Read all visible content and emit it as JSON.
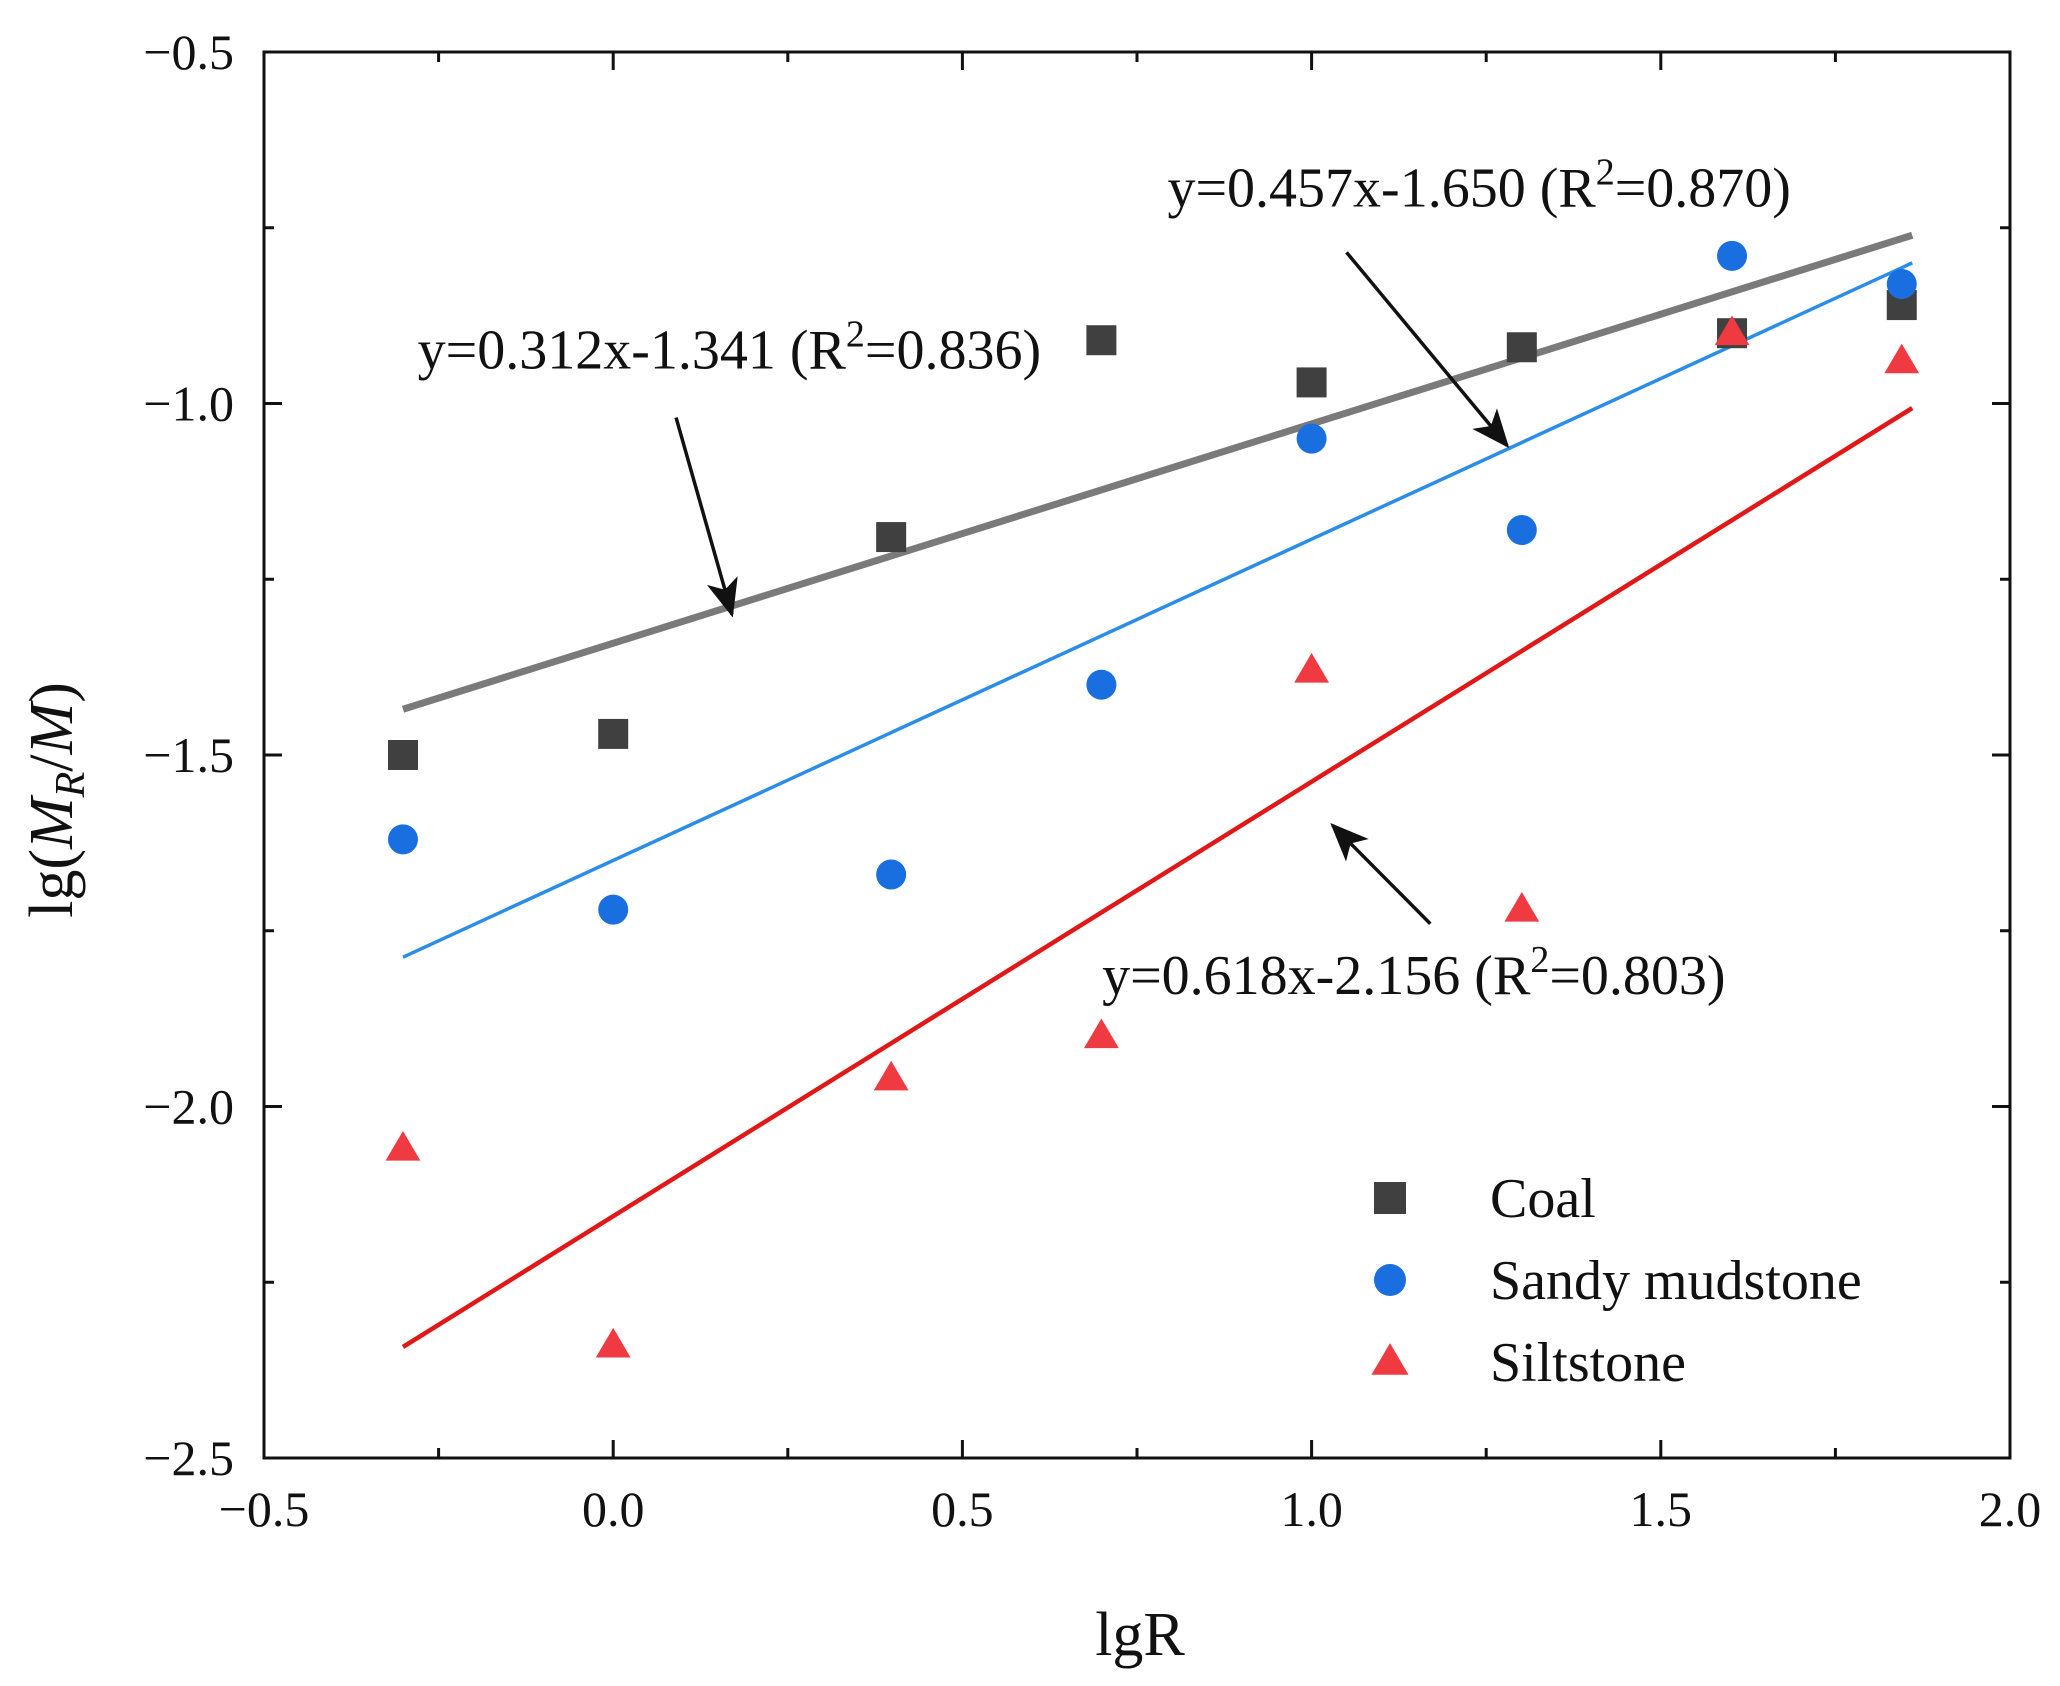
{
  "chart_data": {
    "type": "scatter",
    "title": "",
    "xlabel": "lgR",
    "ylabel": {
      "prefix": "lg(",
      "M": "M",
      "sub": "R",
      "slash": "/",
      "M2": "M",
      "suffix": ")"
    },
    "xlim": [
      -0.5,
      2.0
    ],
    "ylim": [
      -2.5,
      -0.5
    ],
    "x_ticks": [
      -0.5,
      0.0,
      0.5,
      1.0,
      1.5,
      2.0
    ],
    "x_tick_labels": [
      "−0.5",
      "0.0",
      "0.5",
      "1.0",
      "1.5",
      "2.0"
    ],
    "y_ticks": [
      -2.5,
      -2.0,
      -1.5,
      -1.0,
      -0.5
    ],
    "y_tick_labels": [
      "−2.5",
      "−2.0",
      "−1.5",
      "−1.0",
      "−0.5"
    ],
    "grid": false,
    "legend_position": "bottom-right",
    "series": [
      {
        "name": "Coal",
        "marker": "square",
        "color": "#404040",
        "line_color": "#7a7a7a",
        "x": [
          -0.301,
          0.0,
          0.398,
          0.699,
          1.0,
          1.301,
          1.602,
          1.845
        ],
        "y": [
          -1.5,
          -1.47,
          -1.19,
          -0.91,
          -0.97,
          -0.92,
          -0.9,
          -0.86
        ],
        "fit": {
          "slope": 0.312,
          "intercept": -1.341,
          "x_range": [
            -0.301,
            1.86
          ]
        }
      },
      {
        "name": "Sandy mudstone",
        "marker": "circle",
        "color": "#1a6fe0",
        "line_color": "#2b8de8",
        "x": [
          -0.301,
          0.0,
          0.398,
          0.699,
          1.0,
          1.301,
          1.602,
          1.845
        ],
        "y": [
          -1.62,
          -1.72,
          -1.67,
          -1.4,
          -1.05,
          -1.18,
          -0.79,
          -0.83
        ],
        "fit": {
          "slope": 0.457,
          "intercept": -1.65,
          "x_range": [
            -0.301,
            1.86
          ]
        }
      },
      {
        "name": "Siltstone",
        "marker": "triangle",
        "color": "#ee3a40",
        "line_color": "#e01818",
        "x": [
          -0.301,
          0.0,
          0.398,
          0.699,
          1.0,
          1.301,
          1.602,
          1.845
        ],
        "y": [
          -2.06,
          -2.34,
          -1.96,
          -1.9,
          -1.38,
          -1.72,
          -0.9,
          -0.94
        ],
        "fit": {
          "slope": 0.618,
          "intercept": -2.156,
          "x_range": [
            -0.301,
            1.86
          ]
        }
      }
    ],
    "annotations": [
      {
        "series": "Coal",
        "pre": "y=0.312x-1.341 (R",
        "sup": "2",
        "post": "=0.836)",
        "text_anchor": [
          -0.28,
          -0.95
        ],
        "arrow_from": [
          0.09,
          -1.02
        ],
        "arrow_to": [
          0.17,
          -1.3
        ]
      },
      {
        "series": "Sandy mudstone",
        "pre": "y=0.457x-1.650 (R",
        "sup": "2",
        "post": "=0.870)",
        "text_anchor": [
          1.24,
          -0.72
        ],
        "arrow_from": [
          1.05,
          -0.785
        ],
        "arrow_to": [
          1.28,
          -1.06
        ]
      },
      {
        "series": "Siltstone",
        "pre": "y=0.618x-2.156 (R",
        "sup": "2",
        "post": "=0.803)",
        "text_anchor": [
          0.7,
          -1.84
        ],
        "arrow_from": [
          1.17,
          -1.74
        ],
        "arrow_to": [
          1.03,
          -1.6
        ]
      }
    ]
  }
}
